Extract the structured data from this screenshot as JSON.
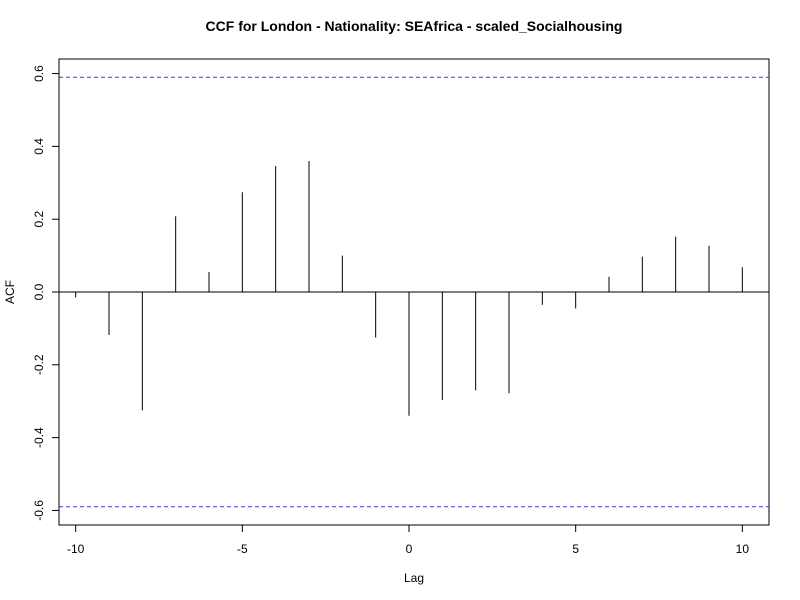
{
  "chart_data": {
    "type": "bar",
    "title": "CCF for London - Nationality: SEAfrica - scaled_Socialhousing",
    "xlabel": "Lag",
    "ylabel": "ACF",
    "xlim": [
      -10.5,
      10.8
    ],
    "ylim": [
      -0.64,
      0.64
    ],
    "x_ticks": [
      -10,
      -5,
      0,
      5,
      10
    ],
    "y_ticks": [
      -0.6,
      -0.4,
      -0.2,
      0.0,
      0.2,
      0.4,
      0.6
    ],
    "y_tick_labels": [
      "-0.6",
      "-0.4",
      "-0.2",
      "0.0",
      "0.2",
      "0.4",
      "0.6"
    ],
    "x": [
      -10,
      -9,
      -8,
      -7,
      -6,
      -5,
      -4,
      -3,
      -2,
      -1,
      0,
      1,
      2,
      3,
      4,
      5,
      6,
      7,
      8,
      9,
      10
    ],
    "values": [
      -0.015,
      -0.118,
      -0.325,
      0.208,
      0.055,
      0.274,
      0.346,
      0.36,
      0.1,
      -0.125,
      -0.34,
      -0.297,
      -0.27,
      -0.278,
      -0.035,
      -0.045,
      0.042,
      0.097,
      0.152,
      0.127,
      0.068
    ],
    "confidence_bound": 0.59,
    "grid": false,
    "colors": {
      "bars": "#000000",
      "bounds": "#3b3bd1",
      "frame": "#000000"
    }
  }
}
